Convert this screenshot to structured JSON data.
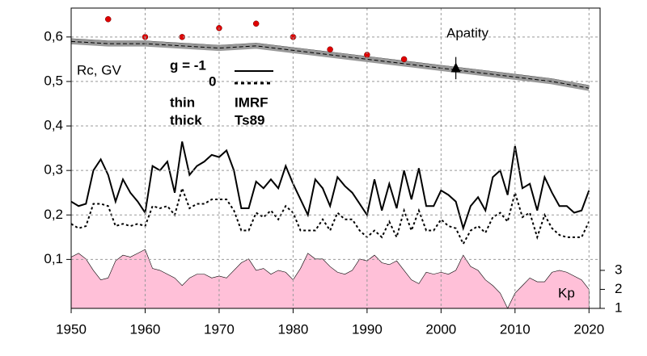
{
  "chart_data": {
    "type": "line",
    "y_axis_label": "Rc, GV",
    "annotations": {
      "station": "Apatity",
      "y2_axis_label": "Kp",
      "thin": "thin",
      "thick": "thick",
      "thin_model": "IMRF",
      "thick_model": "Ts89"
    },
    "x": [
      1950,
      1951,
      1952,
      1953,
      1954,
      1955,
      1956,
      1957,
      1958,
      1959,
      1960,
      1961,
      1962,
      1963,
      1964,
      1965,
      1966,
      1967,
      1968,
      1969,
      1970,
      1971,
      1972,
      1973,
      1974,
      1975,
      1976,
      1977,
      1978,
      1979,
      1980,
      1981,
      1982,
      1983,
      1984,
      1985,
      1986,
      1987,
      1988,
      1989,
      1990,
      1991,
      1992,
      1993,
      1994,
      1995,
      1996,
      1997,
      1998,
      1999,
      2000,
      2001,
      2002,
      2003,
      2004,
      2005,
      2006,
      2007,
      2008,
      2009,
      2010,
      2011,
      2012,
      2013,
      2014,
      2015,
      2016,
      2017,
      2018,
      2019,
      2020
    ],
    "series": [
      {
        "name": "g  = -1",
        "color": "#000000",
        "style": "solid",
        "values": [
          0.23,
          0.22,
          0.225,
          0.3,
          0.325,
          0.29,
          0.23,
          0.28,
          0.25,
          0.23,
          0.205,
          0.31,
          0.3,
          0.32,
          0.25,
          0.365,
          0.29,
          0.31,
          0.32,
          0.335,
          0.33,
          0.345,
          0.3,
          0.215,
          0.215,
          0.275,
          0.26,
          0.28,
          0.26,
          0.31,
          0.27,
          0.235,
          0.2,
          0.28,
          0.26,
          0.22,
          0.285,
          0.265,
          0.25,
          0.225,
          0.2,
          0.28,
          0.21,
          0.27,
          0.215,
          0.3,
          0.235,
          0.305,
          0.22,
          0.22,
          0.255,
          0.245,
          0.23,
          0.17,
          0.22,
          0.24,
          0.21,
          0.285,
          0.3,
          0.245,
          0.355,
          0.26,
          0.27,
          0.21,
          0.285,
          0.25,
          0.22,
          0.22,
          0.205,
          0.21,
          0.255
        ]
      },
      {
        "name": "0",
        "color": "#000000",
        "style": "dotted",
        "values": [
          0.18,
          0.17,
          0.175,
          0.225,
          0.225,
          0.22,
          0.175,
          0.18,
          0.175,
          0.18,
          0.175,
          0.22,
          0.215,
          0.22,
          0.2,
          0.26,
          0.215,
          0.225,
          0.225,
          0.235,
          0.235,
          0.235,
          0.21,
          0.165,
          0.165,
          0.205,
          0.195,
          0.21,
          0.19,
          0.22,
          0.205,
          0.165,
          0.165,
          0.165,
          0.19,
          0.165,
          0.205,
          0.19,
          0.19,
          0.165,
          0.15,
          0.165,
          0.15,
          0.185,
          0.15,
          0.21,
          0.165,
          0.21,
          0.165,
          0.165,
          0.19,
          0.175,
          0.17,
          0.135,
          0.165,
          0.175,
          0.16,
          0.195,
          0.205,
          0.185,
          0.25,
          0.195,
          0.205,
          0.15,
          0.2,
          0.17,
          0.155,
          0.15,
          0.15,
          0.15,
          0.185
        ]
      },
      {
        "color": "#000000",
        "style": "solid",
        "x": [
          1950,
          1955,
          1960,
          1965,
          1970,
          1975,
          1980,
          1985,
          1990,
          1995,
          2000,
          2005,
          2010,
          2015,
          2020
        ],
        "values": [
          0.595,
          0.59,
          0.59,
          0.585,
          0.58,
          0.585,
          0.575,
          0.565,
          0.555,
          0.545,
          0.535,
          0.525,
          0.515,
          0.505,
          0.49
        ]
      },
      {
        "color": "#999999",
        "style": "thick",
        "x": [
          1950,
          1955,
          1960,
          1965,
          1970,
          1975,
          1980,
          1985,
          1990,
          1995,
          2000,
          2005,
          2010,
          2015,
          2020
        ],
        "values": [
          0.59,
          0.585,
          0.585,
          0.58,
          0.575,
          0.58,
          0.57,
          0.56,
          0.55,
          0.54,
          0.53,
          0.52,
          0.51,
          0.5,
          0.485
        ]
      },
      {
        "color": "#e00000",
        "style": "dots",
        "x": [
          1955,
          1960,
          1965,
          1970,
          1975,
          1980,
          1985,
          1990,
          1995
        ],
        "values": [
          0.64,
          0.6,
          0.6,
          0.62,
          0.63,
          0.6,
          0.572,
          0.56,
          0.55
        ]
      },
      {
        "color": "#000000",
        "style": "triangle",
        "x": [
          2002
        ],
        "values": [
          0.53
        ],
        "errors": [
          0.025
        ]
      },
      {
        "color": "#ffc0d8",
        "style": "area",
        "axis": "y2",
        "values": [
          3.7,
          3.9,
          3.6,
          3.0,
          2.5,
          2.6,
          3.5,
          3.8,
          3.7,
          3.9,
          4.1,
          3.1,
          3.0,
          2.8,
          2.6,
          2.2,
          2.6,
          2.8,
          2.8,
          2.6,
          2.7,
          2.6,
          3.0,
          3.4,
          3.6,
          3.0,
          3.1,
          2.8,
          3.0,
          2.9,
          2.5,
          3.1,
          3.9,
          3.6,
          3.6,
          3.2,
          2.9,
          2.8,
          3.0,
          3.6,
          3.5,
          3.8,
          3.4,
          3.3,
          3.5,
          3.0,
          2.5,
          2.3,
          2.9,
          2.8,
          2.9,
          2.8,
          3.0,
          3.8,
          3.2,
          3.0,
          2.5,
          2.2,
          1.8,
          1.0,
          1.8,
          2.2,
          2.6,
          2.4,
          2.4,
          2.9,
          3.0,
          2.9,
          2.7,
          2.5,
          2.0
        ]
      }
    ],
    "xlim": [
      1950,
      2021.5
    ],
    "xticks": [
      1950,
      1960,
      1970,
      1980,
      1990,
      2000,
      2010,
      2020
    ],
    "ylim": [
      -0.01,
      0.665
    ],
    "yticks": [
      {
        "value": 0.1,
        "label": "0,1"
      },
      {
        "value": 0.2,
        "label": "0,2"
      },
      {
        "value": 0.3,
        "label": "0,3"
      },
      {
        "value": 0.4,
        "label": "0,4"
      },
      {
        "value": 0.5,
        "label": "0,5"
      },
      {
        "value": 0.6,
        "label": "0,6"
      }
    ],
    "y2lim": [
      1,
      16.8
    ],
    "y2ticks": [
      1,
      2,
      3
    ],
    "grid": true
  }
}
